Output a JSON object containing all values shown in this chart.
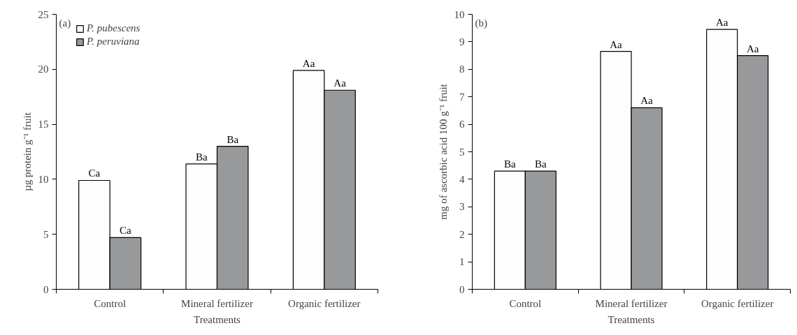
{
  "chart_data": [
    {
      "type": "bar",
      "categories": [
        "Control",
        "Mineral fertilizer",
        "Organic fertilizer"
      ],
      "xlabel": "Treatments",
      "ylabel": "µg protein g⁻¹ fruit",
      "ylim": [
        0,
        25
      ],
      "yticks": [
        0,
        5,
        10,
        15,
        20,
        25
      ],
      "grid": false,
      "legend": "top left",
      "annotations": [
        "(a)"
      ],
      "series": [
        {
          "name": "P. pubescens",
          "color": "#fdfdfd",
          "values": [
            9.9,
            11.4,
            19.9
          ],
          "value_labels": [
            "Ca",
            "Ba",
            "Aa"
          ]
        },
        {
          "name": "P. peruviana",
          "color": "#98999b",
          "values": [
            4.7,
            13.0,
            18.1
          ],
          "value_labels": [
            "Ca",
            "Ba",
            "Aa"
          ]
        }
      ]
    },
    {
      "type": "bar",
      "categories": [
        "Control",
        "Mineral fertilizer",
        "Organic fertilizer"
      ],
      "xlabel": "Treatments",
      "ylabel": "mg of ascorbic acid 100 g⁻¹ fruit",
      "ylim": [
        0,
        10
      ],
      "yticks": [
        0,
        1,
        2,
        3,
        4,
        5,
        6,
        7,
        8,
        9,
        10
      ],
      "grid": false,
      "legend": false,
      "annotations": [
        "(b)"
      ],
      "series": [
        {
          "color": "#fdfdfd",
          "values": [
            4.3,
            8.65,
            9.45
          ],
          "value_labels": [
            "Ba",
            "Aa",
            "Aa"
          ]
        },
        {
          "color": "#98999b",
          "values": [
            4.3,
            6.6,
            8.5
          ],
          "value_labels": [
            "Ba",
            "Aa",
            "Aa"
          ]
        }
      ]
    }
  ]
}
